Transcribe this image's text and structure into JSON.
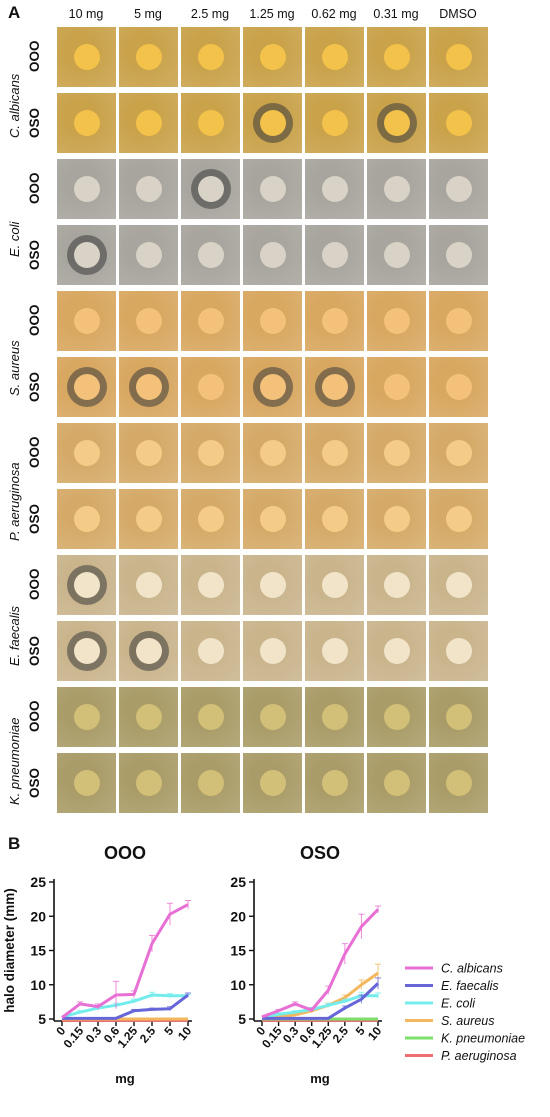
{
  "panel_a_label": "A",
  "panel_b_label": "B",
  "concentrations": [
    "10 mg",
    "5 mg",
    "2.5 mg",
    "1.25 mg",
    "0.62 mg",
    "0.31 mg",
    "DMSO"
  ],
  "species_groups": [
    {
      "species": "C. albicans",
      "rows": [
        "OOO",
        "OSO"
      ],
      "bg": "#c9a24a",
      "disc": "#f2c24a"
    },
    {
      "species": "E. coli",
      "rows": [
        "OOO",
        "OSO"
      ],
      "bg": "#a7a59d",
      "disc": "#d9d2c6"
    },
    {
      "species": "S. aureus",
      "rows": [
        "OOO",
        "OSO"
      ],
      "bg": "#d8a760",
      "disc": "#f3c17a"
    },
    {
      "species": "P. aeruginosa",
      "rows": [
        "OOO",
        "OSO"
      ],
      "bg": "#d5aa68",
      "disc": "#f4cc88"
    },
    {
      "species": "E. faecalis",
      "rows": [
        "OOO",
        "OSO"
      ],
      "bg": "#c9b48c",
      "disc": "#f1e4c8"
    },
    {
      "species": "K. pneumoniae",
      "rows": [
        "OOO",
        "OSO"
      ],
      "bg": "#a99c68",
      "disc": "#d2c079"
    }
  ],
  "legend": [
    {
      "name": "C. albicans",
      "color": "#e86fd3"
    },
    {
      "name": "E. faecalis",
      "color": "#6666d9"
    },
    {
      "name": "E. coli",
      "color": "#74ecec"
    },
    {
      "name": "S. aureus",
      "color": "#f3b85e"
    },
    {
      "name": "K. pneumoniae",
      "color": "#7de06b"
    },
    {
      "name": "P. aeruginosa",
      "color": "#ec6f72"
    }
  ],
  "chart_data": [
    {
      "type": "line",
      "title": "OOO",
      "xlabel": "mg",
      "ylabel": "halo diameter (mm)",
      "x_categories": [
        "0",
        "0.15",
        "0.3",
        "0.6",
        "1.25",
        "2.5",
        "5",
        "10"
      ],
      "ylim": [
        5,
        25
      ],
      "yticks": [
        5,
        10,
        15,
        20,
        25
      ],
      "series": [
        {
          "name": "C. albicans",
          "color": "#e86fd3",
          "values": [
            5.2,
            7.2,
            6.8,
            8.5,
            8.6,
            16.0,
            20.3,
            21.7
          ],
          "err": [
            0,
            0.3,
            0.4,
            2.0,
            0.5,
            1.2,
            1.6,
            0.6
          ]
        },
        {
          "name": "E. faecalis",
          "color": "#6666d9",
          "values": [
            5.1,
            5.1,
            5.1,
            5.1,
            6.2,
            6.4,
            6.5,
            8.5
          ],
          "err": [
            0,
            0,
            0,
            0,
            0.2,
            0.2,
            0.3,
            0.3
          ]
        },
        {
          "name": "E. coli",
          "color": "#74ecec",
          "values": [
            5.3,
            6.0,
            6.6,
            7.0,
            7.6,
            8.5,
            8.4,
            8.4
          ],
          "err": [
            0,
            0.2,
            0.3,
            0.3,
            0.3,
            0.4,
            0.3,
            0.2
          ]
        },
        {
          "name": "S. aureus",
          "color": "#f3b85e",
          "values": [
            5.0,
            5.0,
            5.0,
            5.0,
            5.0,
            5.0,
            5.0,
            5.0
          ],
          "err": [
            0,
            0,
            0,
            0,
            0,
            0,
            0,
            0
          ]
        },
        {
          "name": "K. pneumoniae",
          "color": "#7de06b",
          "values": [
            5.0,
            5.0,
            5.0,
            5.0,
            5.0,
            5.0,
            5.0,
            5.0
          ],
          "err": [
            0,
            0,
            0,
            0,
            0,
            0,
            0,
            0
          ]
        },
        {
          "name": "P. aeruginosa",
          "color": "#ec6f72",
          "values": [
            4.8,
            4.8,
            4.8,
            4.8,
            4.8,
            4.8,
            4.8,
            4.8
          ],
          "err": [
            0,
            0,
            0,
            0,
            0,
            0,
            0,
            0
          ]
        }
      ]
    },
    {
      "type": "line",
      "title": "OSO",
      "xlabel": "mg",
      "ylabel": "",
      "x_categories": [
        "0",
        "0.15",
        "0.3",
        "0.6",
        "1.25",
        "2.5",
        "5",
        "10"
      ],
      "ylim": [
        5,
        25
      ],
      "yticks": [
        5,
        10,
        15,
        20,
        25
      ],
      "series": [
        {
          "name": "C. albicans",
          "color": "#e86fd3",
          "values": [
            5.3,
            6.2,
            7.2,
            6.3,
            9.2,
            14.5,
            18.5,
            21.0
          ],
          "err": [
            0,
            0.2,
            0.3,
            0.3,
            0.6,
            1.5,
            1.8,
            0.5
          ]
        },
        {
          "name": "E. faecalis",
          "color": "#6666d9",
          "values": [
            5.1,
            5.1,
            5.1,
            5.1,
            5.1,
            6.6,
            7.9,
            10.2
          ],
          "err": [
            0,
            0,
            0,
            0,
            0,
            0.3,
            0.6,
            0.8
          ]
        },
        {
          "name": "E. coli",
          "color": "#74ecec",
          "values": [
            5.2,
            5.7,
            6.0,
            6.4,
            7.0,
            7.6,
            8.4,
            8.4
          ],
          "err": [
            0,
            0.2,
            0.2,
            0.3,
            0.3,
            0.3,
            0.5,
            0.4
          ]
        },
        {
          "name": "S. aureus",
          "color": "#f3b85e",
          "values": [
            5.1,
            5.3,
            5.6,
            6.2,
            7.0,
            8.1,
            10.0,
            11.7
          ],
          "err": [
            0,
            0.2,
            0.2,
            0.3,
            0.3,
            0.4,
            0.7,
            1.3
          ]
        },
        {
          "name": "K. pneumoniae",
          "color": "#7de06b",
          "values": [
            5.0,
            5.0,
            5.0,
            5.0,
            5.0,
            5.0,
            5.0,
            5.0
          ],
          "err": [
            0,
            0,
            0,
            0,
            0,
            0,
            0,
            0
          ]
        },
        {
          "name": "P. aeruginosa",
          "color": "#ec6f72",
          "values": [
            4.8,
            4.8,
            4.8,
            4.8,
            4.8,
            4.8,
            4.8,
            4.8
          ],
          "err": [
            0,
            0,
            0,
            0,
            0,
            0,
            0,
            0
          ]
        }
      ]
    }
  ]
}
